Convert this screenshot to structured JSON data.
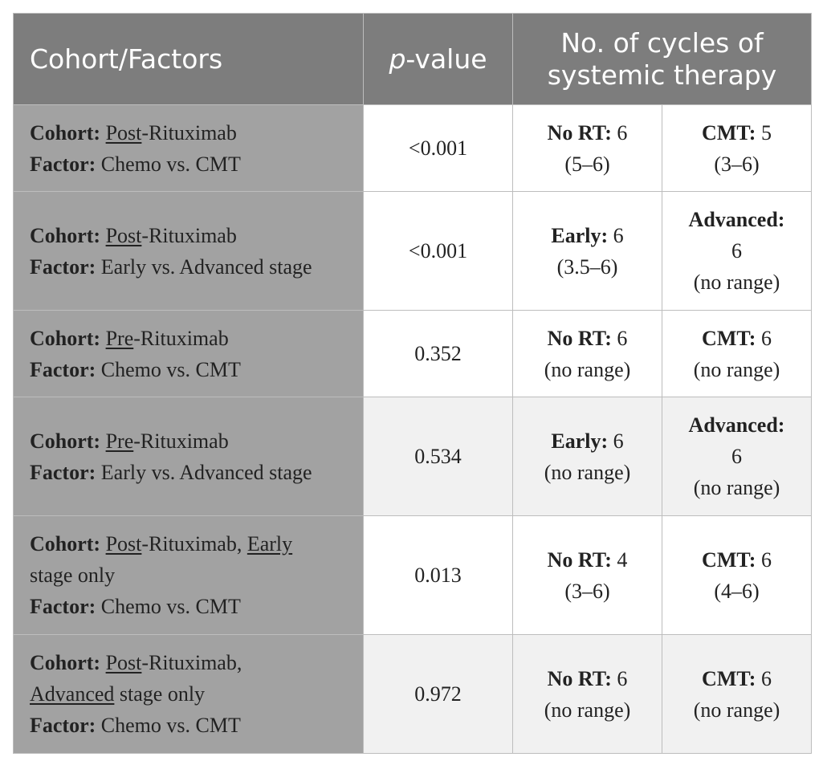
{
  "header": {
    "col1": "Cohort/Factors",
    "col2_italic": "p",
    "col2_rest": "-value",
    "col3": "No. of cycles of systemic therapy"
  },
  "rows": [
    {
      "cohort_label": "Cohort:",
      "cohort_u1": "Post",
      "cohort_t1": "-Rituximab",
      "factor_label": "Factor:",
      "factor": "Chemo vs. CMT",
      "p": "<0.001",
      "a_label": "No RT:",
      "a_val": "6",
      "a_range": "(5–6)",
      "b_label": "CMT:",
      "b_val": "5",
      "b_range": "(3–6)"
    },
    {
      "cohort_label": "Cohort:",
      "cohort_u1": "Post",
      "cohort_t1": "-Rituximab",
      "factor_label": "Factor:",
      "factor": "Early vs. Advanced stage",
      "p": "<0.001",
      "a_label": "Early:",
      "a_val": "6",
      "a_range": "(3.5–6)",
      "b_label": "Advanced:",
      "b_val": "6",
      "b_range": "(no range)"
    },
    {
      "cohort_label": "Cohort:",
      "cohort_u1": "Pre",
      "cohort_t1": "-Rituximab",
      "factor_label": "Factor:",
      "factor": "Chemo vs. CMT",
      "p": "0.352",
      "a_label": "No RT:",
      "a_val": "6",
      "a_range": "(no range)",
      "b_label": "CMT:",
      "b_val": "6",
      "b_range": "(no range)"
    },
    {
      "cohort_label": "Cohort:",
      "cohort_u1": "Pre",
      "cohort_t1": "-Rituximab",
      "factor_label": "Factor:",
      "factor": "Early vs. Advanced stage",
      "p": "0.534",
      "a_label": "Early:",
      "a_val": "6",
      "a_range": "(no range)",
      "b_label": "Advanced:",
      "b_val": "6",
      "b_range": "(no range)"
    },
    {
      "cohort_label": "Cohort:",
      "cohort_u1": "Post",
      "cohort_t1": "-Rituximab, ",
      "cohort_u2": "Early",
      "cohort_t2": "stage only",
      "factor_label": "Factor:",
      "factor": "Chemo vs. CMT",
      "p": "0.013",
      "a_label": "No RT:",
      "a_val": "4",
      "a_range": "(3–6)",
      "b_label": "CMT:",
      "b_val": "6",
      "b_range": "(4–6)"
    },
    {
      "cohort_label": "Cohort:",
      "cohort_u1": "Post",
      "cohort_t1": "-Rituximab,",
      "cohort_u2": "Advanced",
      "cohort_t2": " stage only",
      "factor_label": "Factor:",
      "factor": "Chemo vs. CMT",
      "p": "0.972",
      "a_label": "No RT:",
      "a_val": "6",
      "a_range": "(no range)",
      "b_label": "CMT:",
      "b_val": "6",
      "b_range": "(no range)"
    }
  ],
  "colors": {
    "header_bg": "#7d7d7d",
    "cohort_col_bg": "#a2a2a2",
    "row_white": "#ffffff",
    "row_grey": "#f1f1f1",
    "border": "#bdbdbd"
  }
}
